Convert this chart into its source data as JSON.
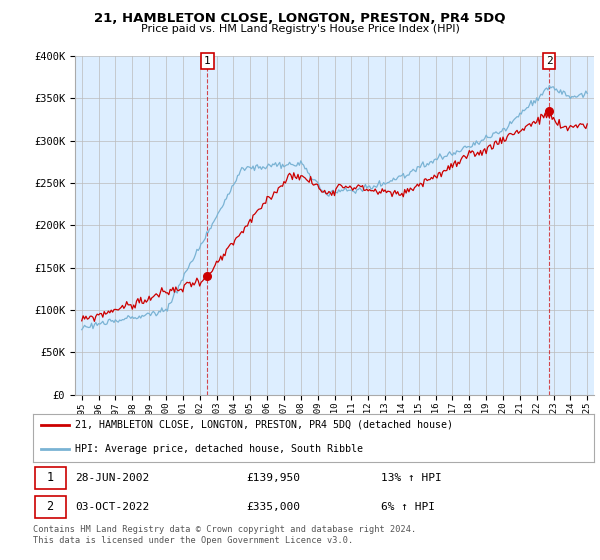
{
  "title": "21, HAMBLETON CLOSE, LONGTON, PRESTON, PR4 5DQ",
  "subtitle": "Price paid vs. HM Land Registry's House Price Index (HPI)",
  "ylim": [
    0,
    400000
  ],
  "yticks": [
    0,
    50000,
    100000,
    150000,
    200000,
    250000,
    300000,
    350000,
    400000
  ],
  "ytick_labels": [
    "£0",
    "£50K",
    "£100K",
    "£150K",
    "£200K",
    "£250K",
    "£300K",
    "£350K",
    "£400K"
  ],
  "hpi_color": "#7ab3d4",
  "price_color": "#cc0000",
  "chart_bg": "#ddeeff",
  "legend_label_price": "21, HAMBLETON CLOSE, LONGTON, PRESTON, PR4 5DQ (detached house)",
  "legend_label_hpi": "HPI: Average price, detached house, South Ribble",
  "annotation1_date": "28-JUN-2002",
  "annotation1_price": "£139,950",
  "annotation1_hpi": "13% ↑ HPI",
  "annotation2_date": "03-OCT-2022",
  "annotation2_price": "£335,000",
  "annotation2_hpi": "6% ↑ HPI",
  "footer": "Contains HM Land Registry data © Crown copyright and database right 2024.\nThis data is licensed under the Open Government Licence v3.0.",
  "background_color": "#ffffff",
  "grid_color": "#bbbbbb",
  "sale1_year": 2002.46,
  "sale1_price": 139950,
  "sale2_year": 2022.75,
  "sale2_price": 335000
}
